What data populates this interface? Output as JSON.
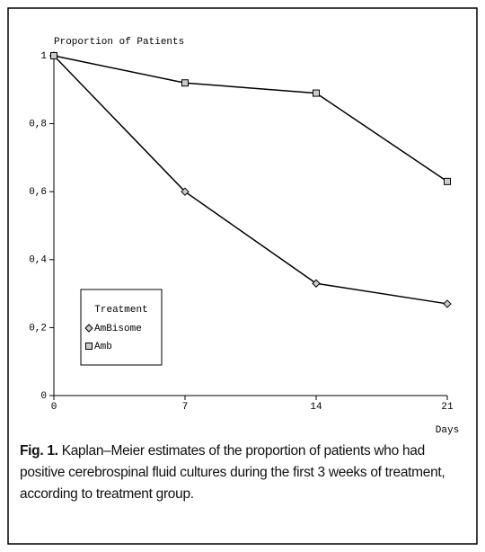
{
  "chart_data": {
    "type": "line",
    "ylabel": "Proportion of Patients",
    "xlabel": "Days",
    "x": [
      0,
      7,
      14,
      21
    ],
    "xlim": [
      0,
      21
    ],
    "xticks": [
      0,
      7,
      14,
      21
    ],
    "ylim": [
      0,
      1
    ],
    "yticks": [
      0,
      {
        "value": 0.2,
        "label": "0,2"
      },
      {
        "value": 0.4,
        "label": "0,4"
      },
      {
        "value": 0.6,
        "label": "0,6"
      },
      {
        "value": 0.8,
        "label": "0,8"
      },
      1
    ],
    "legend_title": "Treatment",
    "series": [
      {
        "name": "AmBisome",
        "color": "#000000",
        "marker": "diamond",
        "values": [
          1,
          0.6,
          0.33,
          0.27
        ]
      },
      {
        "name": "Amb",
        "color": "#000000",
        "marker": "square",
        "values": [
          1,
          0.92,
          0.89,
          0.63
        ]
      }
    ]
  },
  "caption": {
    "label": "Fig. 1.",
    "text": "Kaplan–Meier estimates of the proportion of patients who had positive cerebrospinal fluid cultures during the first 3 weeks of treatment, according to treatment group."
  }
}
